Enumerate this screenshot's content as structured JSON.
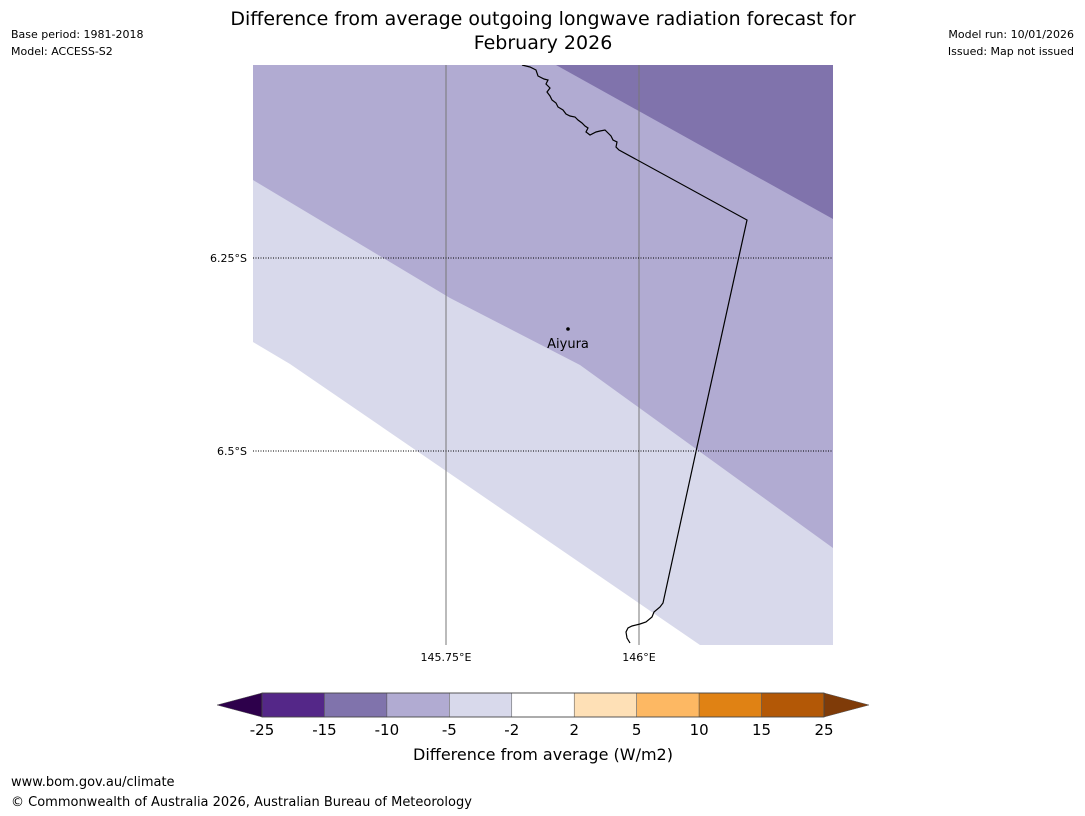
{
  "header": {
    "title_line1": "Difference from average outgoing longwave radiation forecast for",
    "title_line2": "February 2026",
    "base_period": "Base period: 1981-2018",
    "model": "Model: ACCESS-S2",
    "model_run": "Model run: 10/01/2026",
    "issued": "Issued: Map not issued"
  },
  "map": {
    "lat_labels": [
      "6.25°S",
      "6.5°S"
    ],
    "lon_labels": [
      "145.75°E",
      "146°E"
    ],
    "place": "Aiyura",
    "region_colors": {
      "minus_15_to_minus_10": "#8073ac",
      "minus_10_to_minus_5": "#b1abd2",
      "minus_5_to_minus_2": "#d8d9eb",
      "minus_2_to_2": "#ffffff"
    }
  },
  "colorbar": {
    "title": "Difference from average (W/m2)",
    "ticks": [
      "-25",
      "-15",
      "-10",
      "-5",
      "-2",
      "2",
      "5",
      "10",
      "15",
      "25"
    ],
    "under_color": "#2d004b",
    "over_color": "#7f3b08",
    "colors": [
      "#542788",
      "#8073ac",
      "#b1abd2",
      "#d8d9eb",
      "#ffffff",
      "#fee0b6",
      "#fdb863",
      "#e08214",
      "#b35806"
    ]
  },
  "footer": {
    "url": "www.bom.gov.au/climate",
    "copyright": "© Commonwealth of Australia 2026, Australian Bureau of Meteorology"
  }
}
